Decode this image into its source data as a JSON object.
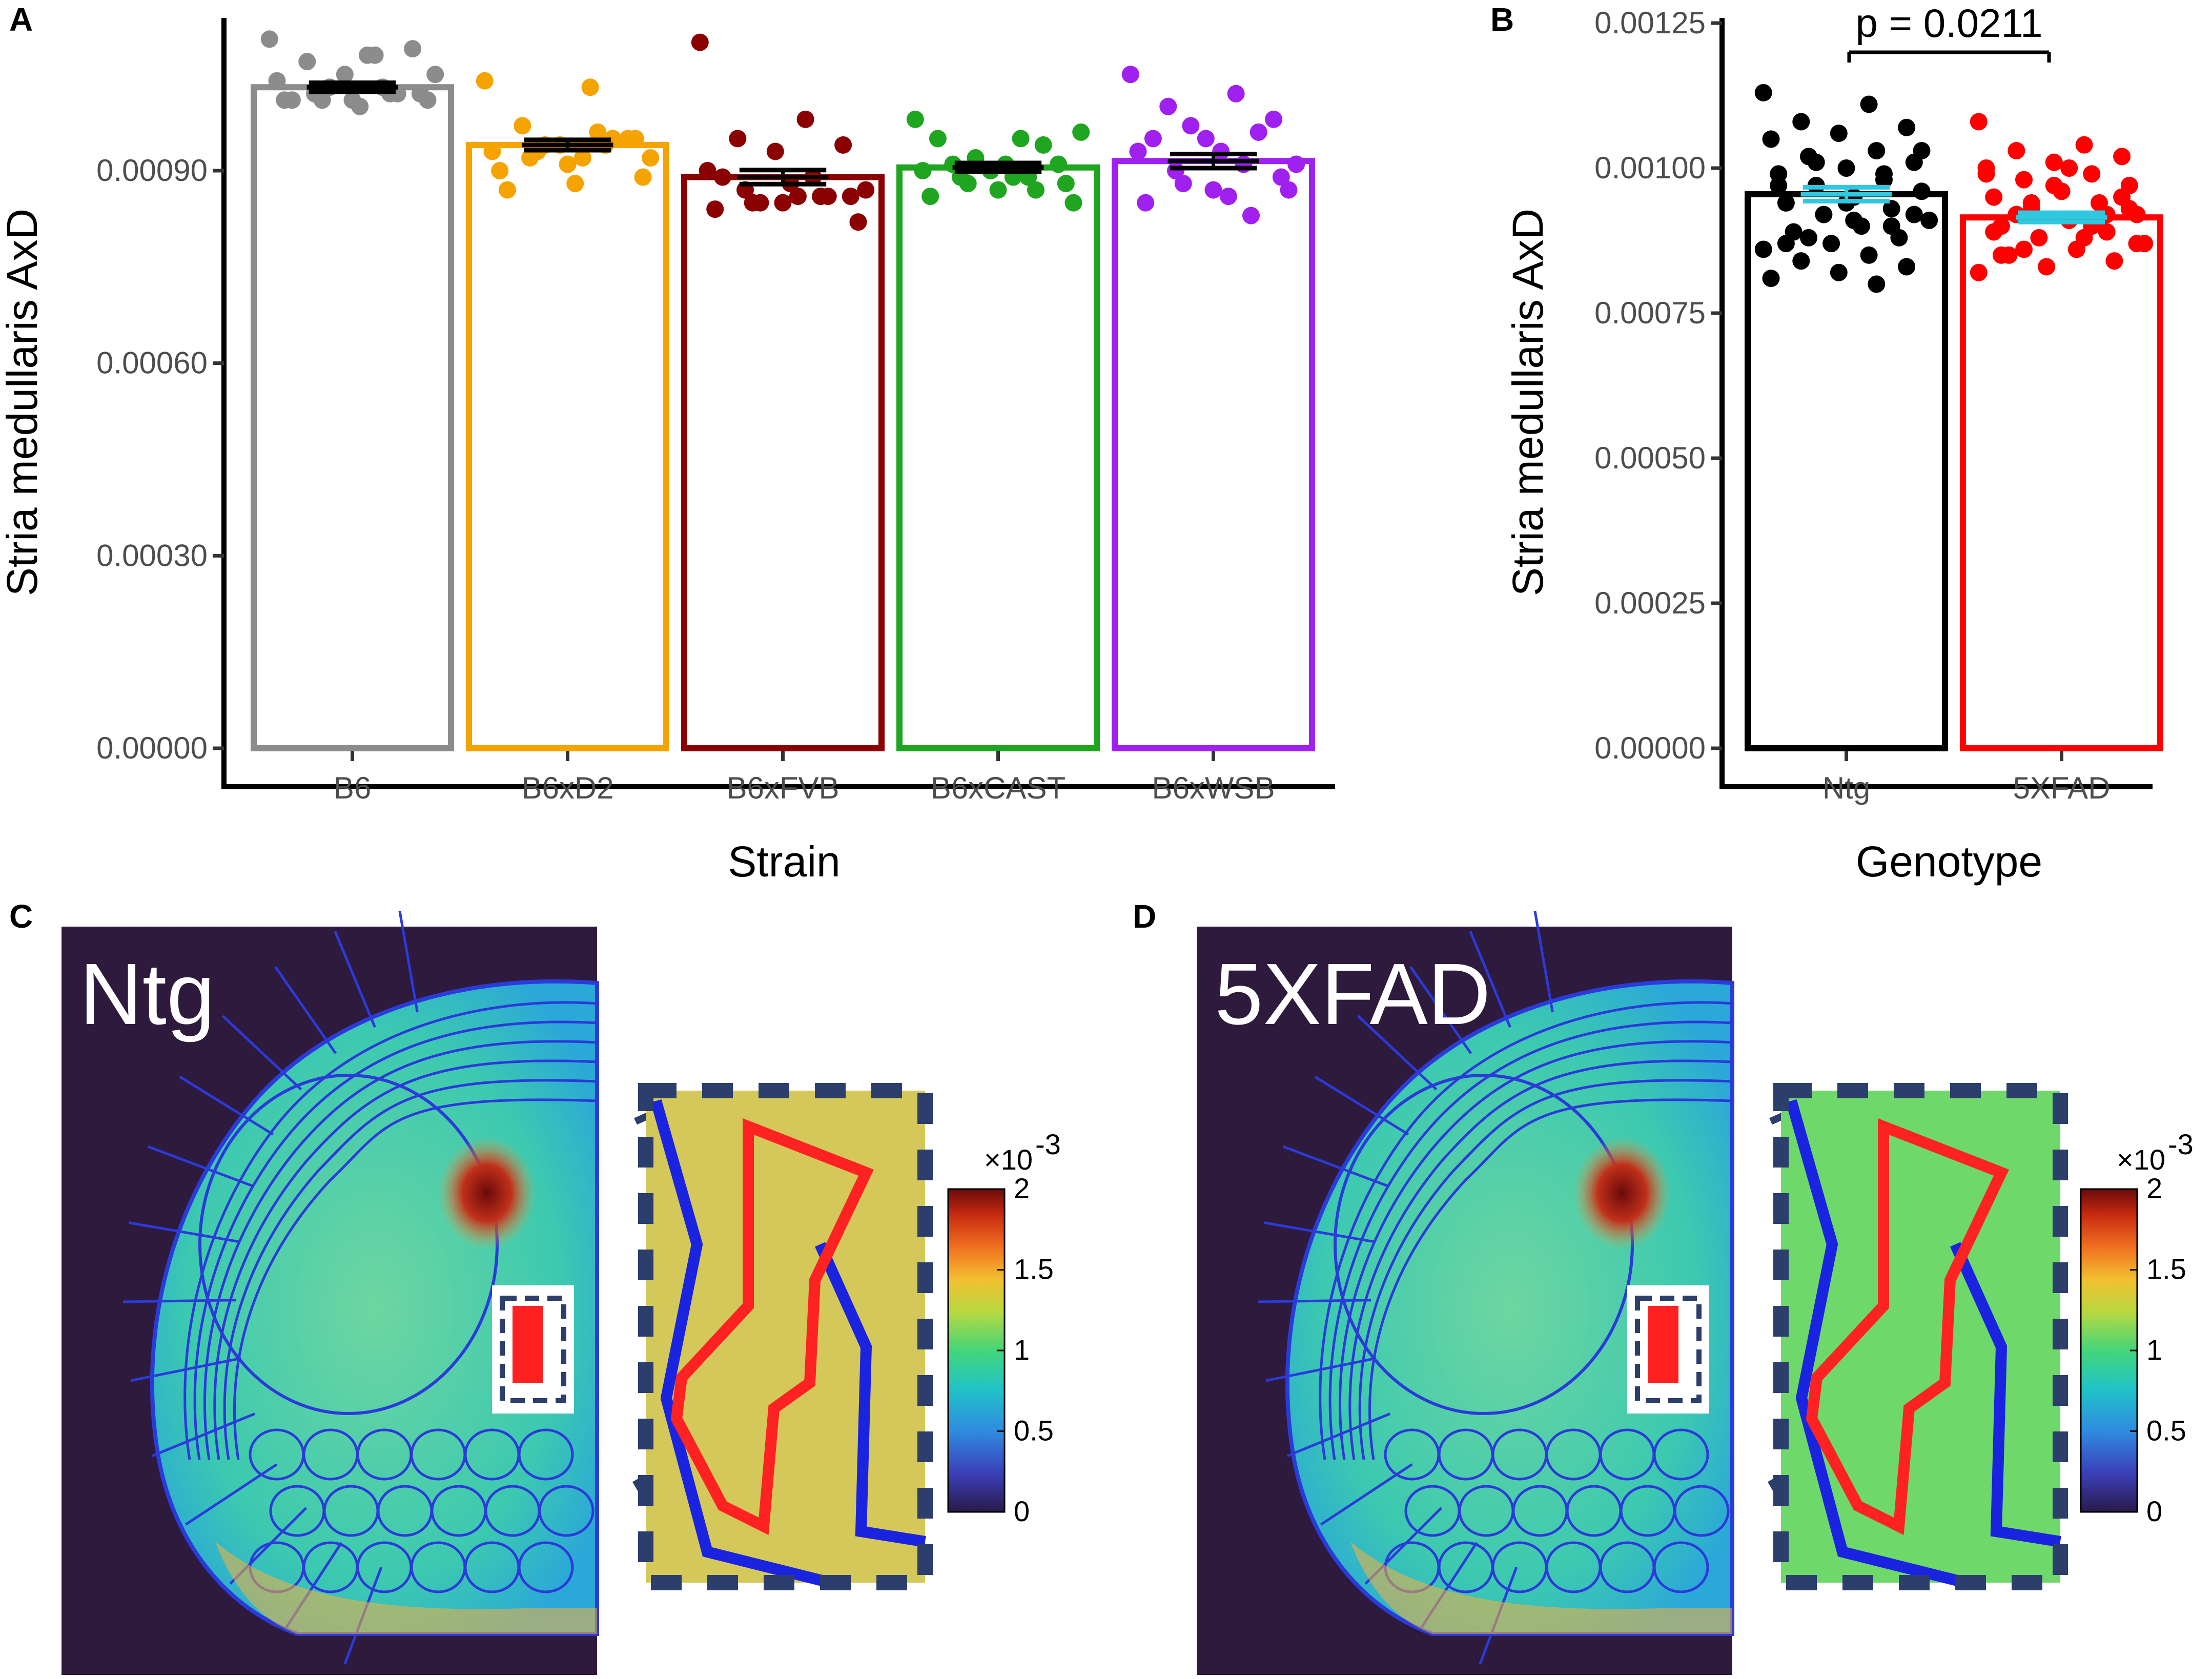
{
  "panels": {
    "a": "A",
    "b": "B",
    "c": "C",
    "d": "D"
  },
  "chart_data": [
    {
      "panel": "A",
      "type": "bar",
      "ylabel": "Stria medullaris AxD",
      "xlabel": "Strain",
      "yticks": [
        "0.00000",
        "0.00030",
        "0.00060",
        "0.00090"
      ],
      "ylim": [
        0,
        0.00113
      ],
      "categories": [
        "B6",
        "B6xD2",
        "B6xFVB",
        "B6xCAST",
        "B6xWSB"
      ],
      "values": [
        0.00103,
        0.00094,
        0.00089,
        0.000905,
        0.000915
      ],
      "sem": [
        7e-06,
        8e-06,
        1.1e-05,
        7e-06,
        1.1e-05
      ],
      "colors": [
        "#8c8c8c",
        "#f5a300",
        "#8b0000",
        "#1fa51f",
        "#a020f0"
      ],
      "points": [
        [
          0.001105,
          0.00108,
          0.00107,
          0.00109,
          0.00105,
          0.00104,
          0.00103,
          0.00102,
          0.00102,
          0.00101,
          0.00101,
          0.00102,
          0.00101,
          0.00101,
          0.001,
          0.00101,
          0.00102,
          0.00103,
          0.00105,
          0.00108
        ],
        [
          0.00104,
          0.00103,
          0.00097,
          0.00095,
          0.00094,
          0.00093,
          0.00096,
          0.00092,
          0.00095,
          0.00091,
          0.0009,
          0.00094,
          0.00093,
          0.00089,
          0.00088,
          0.00087,
          0.00095,
          0.00094,
          0.00092,
          0.00092
        ],
        [
          0.0011,
          0.00098,
          0.00095,
          0.00094,
          0.00093,
          0.0009,
          0.00089,
          0.00087,
          0.00086,
          0.00085,
          0.00084,
          0.00086,
          0.00085,
          0.00082,
          0.00088,
          0.00089,
          0.00086,
          0.00085,
          0.00087,
          0.00086
        ],
        [
          0.00098,
          0.00095,
          0.00091,
          0.00091,
          0.0009,
          0.0009,
          0.00089,
          0.00089,
          0.00088,
          0.00087,
          0.00086,
          0.00087,
          0.00088,
          0.00085,
          0.00091,
          0.00095,
          0.00094,
          0.00092,
          0.00096,
          0.00089
        ],
        [
          0.00105,
          0.00102,
          0.001,
          0.00098,
          0.00095,
          0.00093,
          0.00091,
          0.0009,
          0.00089,
          0.00087,
          0.00085,
          0.00083,
          0.00088,
          0.00087,
          0.00093,
          0.00095,
          0.00096,
          0.00097,
          0.00091,
          0.00086
        ]
      ]
    },
    {
      "panel": "B",
      "type": "bar",
      "ylabel": "Stria medullaris AxD",
      "xlabel": "Genotype",
      "yticks": [
        "0.00000",
        "0.00025",
        "0.00050",
        "0.00075",
        "0.00100",
        "0.00125"
      ],
      "ylim": [
        0,
        0.00125
      ],
      "categories": [
        "Ntg",
        "5XFAD"
      ],
      "values": [
        0.000955,
        0.000915
      ],
      "sem": [
        1.2e-05,
        8e-06
      ],
      "colors": [
        "#000000",
        "#ff0000"
      ],
      "sem_color": "#2ec8e0",
      "annotation": "p = 0.0211",
      "points": [
        [
          0.00113,
          0.00111,
          0.00108,
          0.00107,
          0.00106,
          0.00105,
          0.00103,
          0.00102,
          0.00101,
          0.001,
          0.00099,
          0.00098,
          0.00097,
          0.00096,
          0.00095,
          0.00094,
          0.00093,
          0.00092,
          0.00091,
          0.0009,
          0.00089,
          0.00088,
          0.00087,
          0.00086,
          0.00085,
          0.00084,
          0.00083,
          0.00082,
          0.00081,
          0.0008,
          0.00088,
          0.00092,
          0.00094,
          0.00097,
          0.00099,
          0.00101,
          0.00103,
          0.00091,
          0.00087,
          0.0009
        ],
        [
          0.00108,
          0.00104,
          0.00103,
          0.00102,
          0.00101,
          0.001,
          0.00099,
          0.00098,
          0.00097,
          0.00096,
          0.00095,
          0.00094,
          0.00093,
          0.00092,
          0.00091,
          0.0009,
          0.00089,
          0.00088,
          0.00087,
          0.00086,
          0.00085,
          0.00084,
          0.00083,
          0.00082,
          0.00088,
          0.00092,
          0.00095,
          0.00097,
          0.00099,
          0.0009,
          0.00086,
          0.00093,
          0.00096,
          0.00089,
          0.00091,
          0.00094,
          0.00087,
          0.001,
          0.00085,
          0.00092
        ]
      ]
    }
  ],
  "brain_images": [
    {
      "panel": "C",
      "label": "Ntg",
      "inset_fill": "#d4c85a"
    },
    {
      "panel": "D",
      "label": "5XFAD",
      "inset_fill": "#6fd86a"
    }
  ],
  "colorbar": {
    "exponent": "×10",
    "exponent_power": "-3",
    "ticks": [
      "0",
      "0.5",
      "1",
      "1.5",
      "2"
    ],
    "range": [
      0,
      2
    ]
  }
}
